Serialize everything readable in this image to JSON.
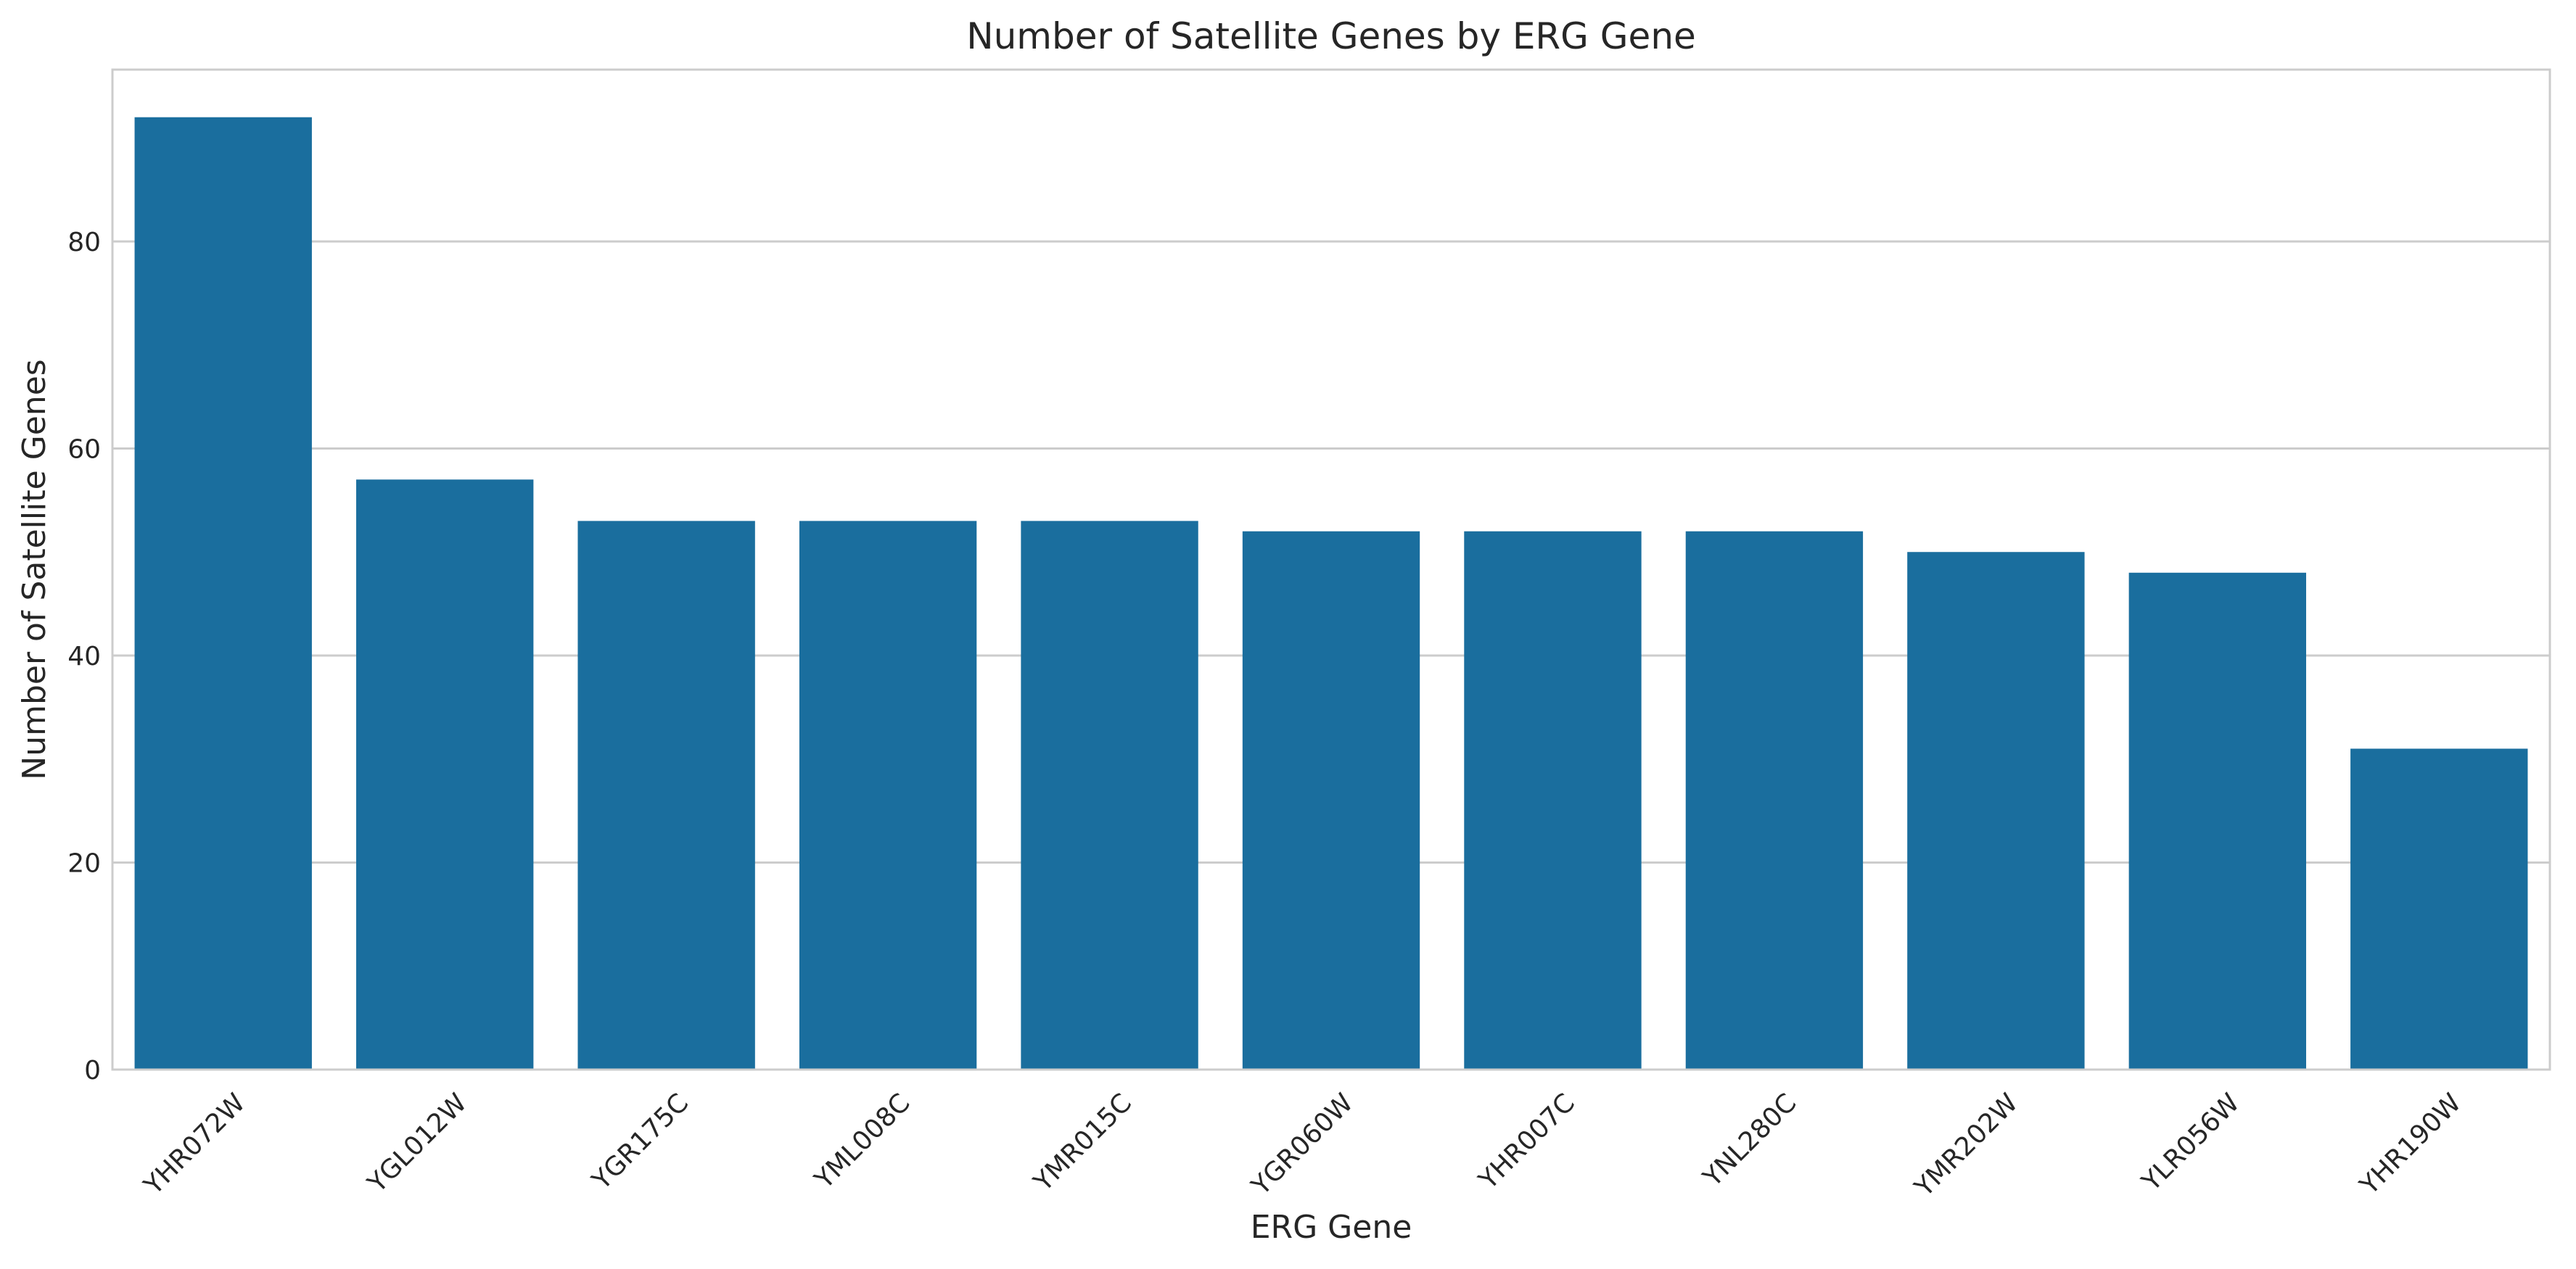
{
  "chart_data": {
    "type": "bar",
    "title": "Number of Satellite Genes by ERG Gene",
    "xlabel": "ERG Gene",
    "ylabel": "Number of Satellite Genes",
    "categories": [
      "YHR072W",
      "YGL012W",
      "YGR175C",
      "YML008C",
      "YMR015C",
      "YGR060W",
      "YHR007C",
      "YNL280C",
      "YMR202W",
      "YLR056W",
      "YHR190W"
    ],
    "values": [
      92,
      57,
      53,
      53,
      53,
      52,
      52,
      52,
      50,
      48,
      31
    ],
    "ylim": [
      0,
      96.6
    ],
    "yticks": [
      0,
      20,
      40,
      60,
      80
    ],
    "grid": "horizontal",
    "bar_color": "#1a6e9e",
    "grid_color": "#cccccc",
    "spine_color": "#cccccc"
  }
}
